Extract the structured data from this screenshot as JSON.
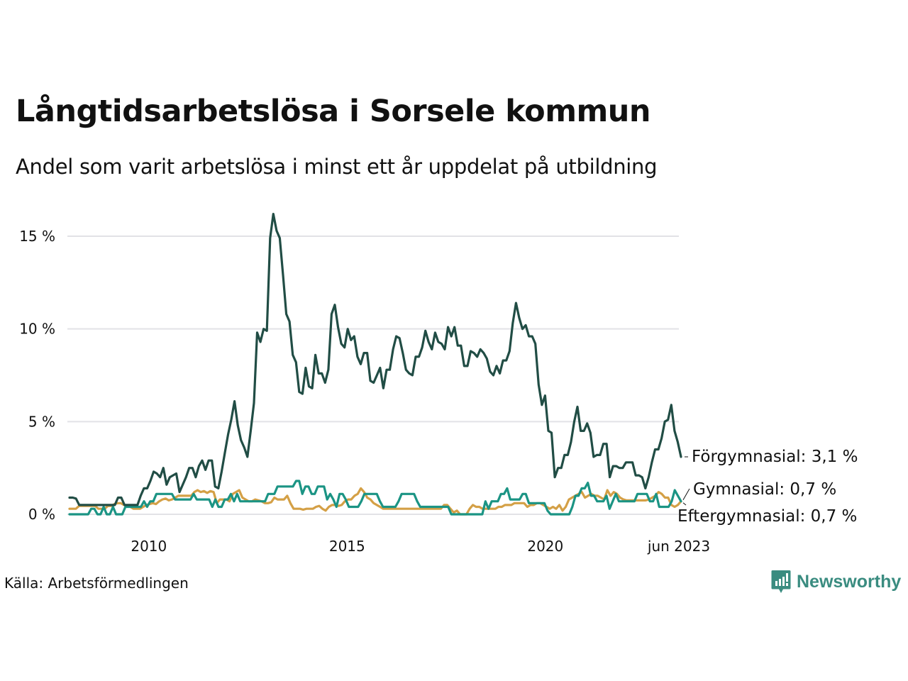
{
  "header": {
    "title": "Långtidsarbetslösa i Sorsele kommun",
    "subtitle": "Andel som varit arbetslösa i minst ett år uppdelat på utbildning"
  },
  "footer": {
    "source": "Källa: Arbetsförmedlingen",
    "logo_text": "Newsworthy",
    "logo_icon": "bar-chart-speech-bubble-icon",
    "logo_color": "#3a8c80"
  },
  "chart_data": {
    "type": "line",
    "title": "Långtidsarbetslösa i Sorsele kommun",
    "subtitle": "Andel som varit arbetslösa i minst ett år uppdelat på utbildning",
    "xlabel": "",
    "ylabel": "",
    "x_start": "2008-01",
    "x_end": "2023-06",
    "x_frequency": "monthly",
    "x_range": [
      2008.0,
      2023.42
    ],
    "x_ticks": [
      {
        "value": 2010.0,
        "label": "2010"
      },
      {
        "value": 2015.0,
        "label": "2015"
      },
      {
        "value": 2020.0,
        "label": "2020"
      },
      {
        "value": 2023.42,
        "label": "jun 2023"
      }
    ],
    "ylim": [
      0,
      16.5
    ],
    "y_ticks": [
      {
        "value": 0,
        "label": "0 %"
      },
      {
        "value": 5,
        "label": "5 %"
      },
      {
        "value": 10,
        "label": "10 %"
      },
      {
        "value": 15,
        "label": "15 %"
      }
    ],
    "grid": "horizontal",
    "legend": "direct-labels-right",
    "series": [
      {
        "name": "Förgymnasial",
        "color": "#214d45",
        "end_label": "Förgymnasial: 3,1 %",
        "values": [
          0.9,
          0.9,
          0.85,
          0.5,
          0.5,
          0.5,
          0.5,
          0.5,
          0.5,
          0.5,
          0.5,
          0.5,
          0.5,
          0.5,
          0.5,
          0.9,
          0.9,
          0.5,
          0.5,
          0.5,
          0.5,
          0.5,
          1.0,
          1.4,
          1.4,
          1.8,
          2.3,
          2.2,
          2.0,
          2.5,
          1.6,
          2.0,
          2.1,
          2.2,
          1.2,
          1.6,
          2.0,
          2.5,
          2.5,
          2.0,
          2.6,
          2.9,
          2.4,
          2.9,
          2.9,
          1.5,
          1.4,
          2.3,
          3.3,
          4.3,
          5.1,
          6.1,
          4.8,
          4.0,
          3.6,
          3.1,
          4.5,
          6.0,
          9.8,
          9.3,
          10.0,
          9.9,
          14.9,
          16.2,
          15.3,
          14.9,
          12.9,
          10.8,
          10.4,
          8.6,
          8.2,
          6.6,
          6.5,
          7.9,
          6.9,
          6.8,
          8.6,
          7.6,
          7.6,
          7.1,
          7.8,
          10.8,
          11.3,
          10.1,
          9.2,
          9.0,
          10.0,
          9.4,
          9.6,
          8.5,
          8.1,
          8.7,
          8.7,
          7.2,
          7.1,
          7.5,
          7.9,
          6.8,
          7.8,
          7.8,
          8.9,
          9.6,
          9.5,
          8.7,
          7.8,
          7.6,
          7.5,
          8.5,
          8.5,
          9.0,
          9.9,
          9.3,
          8.9,
          9.8,
          9.3,
          9.2,
          8.9,
          10.1,
          9.6,
          10.1,
          9.1,
          9.1,
          8.0,
          8.0,
          8.8,
          8.7,
          8.5,
          8.9,
          8.7,
          8.4,
          7.7,
          7.5,
          8.0,
          7.6,
          8.3,
          8.3,
          8.8,
          10.3,
          11.4,
          10.6,
          10.0,
          10.2,
          9.6,
          9.6,
          9.2,
          7.0,
          5.9,
          6.4,
          4.5,
          4.4,
          2.0,
          2.5,
          2.5,
          3.2,
          3.2,
          3.9,
          5.0,
          5.8,
          4.5,
          4.5,
          4.9,
          4.4,
          3.1,
          3.2,
          3.2,
          3.8,
          3.8,
          2.0,
          2.6,
          2.6,
          2.5,
          2.5,
          2.8,
          2.8,
          2.8,
          2.1,
          2.1,
          2.0,
          1.4,
          2.0,
          2.8,
          3.5,
          3.5,
          4.1,
          5.0,
          5.1,
          5.9,
          4.5,
          3.9,
          3.1
        ],
        "end_value": 3.1
      },
      {
        "name": "Gymnasial",
        "color": "#1b9484",
        "end_label": "Gymnasial: 0,7 %",
        "values": [
          0.0,
          0.0,
          0.0,
          0.0,
          0.0,
          0.0,
          0.0,
          0.3,
          0.3,
          0.0,
          0.0,
          0.4,
          0.0,
          0.0,
          0.4,
          0.0,
          0.0,
          0.0,
          0.4,
          0.4,
          0.4,
          0.4,
          0.4,
          0.4,
          0.7,
          0.4,
          0.7,
          0.7,
          1.1,
          1.1,
          1.1,
          1.1,
          1.1,
          1.1,
          0.8,
          0.8,
          0.8,
          0.8,
          0.8,
          0.8,
          1.1,
          0.8,
          0.8,
          0.8,
          0.8,
          0.8,
          0.4,
          0.8,
          0.4,
          0.4,
          0.8,
          0.8,
          1.1,
          0.7,
          1.1,
          0.7,
          0.7,
          0.7,
          0.7,
          0.7,
          0.7,
          0.7,
          0.7,
          0.7,
          1.1,
          1.1,
          1.1,
          1.5,
          1.5,
          1.5,
          1.5,
          1.5,
          1.5,
          1.8,
          1.8,
          1.1,
          1.5,
          1.5,
          1.1,
          1.1,
          1.5,
          1.5,
          1.5,
          0.8,
          1.1,
          0.8,
          0.4,
          1.1,
          1.1,
          0.8,
          0.4,
          0.4,
          0.4,
          0.4,
          0.7,
          1.1,
          1.1,
          1.1,
          1.1,
          1.1,
          0.7,
          0.4,
          0.4,
          0.4,
          0.4,
          0.4,
          0.7,
          1.1,
          1.1,
          1.1,
          1.1,
          1.1,
          0.7,
          0.4,
          0.4,
          0.4,
          0.4,
          0.4,
          0.4,
          0.4,
          0.4,
          0.4,
          0.4,
          0.0,
          0.0,
          0.0,
          0.0,
          0.0,
          0.0,
          0.0,
          0.0,
          0.0,
          0.0,
          0.0,
          0.7,
          0.3,
          0.7,
          0.7,
          0.7,
          1.1,
          1.1,
          1.4,
          0.8,
          0.8,
          0.8,
          0.8,
          1.1,
          1.1,
          0.6,
          0.6,
          0.6,
          0.6,
          0.6,
          0.6,
          0.2,
          0.0,
          0.0,
          0.0,
          0.0,
          0.0,
          0.0,
          0.0,
          0.4,
          1.0,
          1.0,
          1.4,
          1.4,
          1.7,
          1.0,
          1.0,
          0.7,
          0.7,
          0.7,
          1.0,
          0.3,
          0.7,
          1.1,
          0.7,
          0.7,
          0.7,
          0.7,
          0.7,
          0.7,
          1.1,
          1.1,
          1.1,
          1.1,
          0.7,
          0.7,
          1.1,
          0.4,
          0.4,
          0.4,
          0.4,
          0.7,
          1.3,
          1.0,
          0.7
        ],
        "end_value": 0.7
      },
      {
        "name": "Eftergymnasial",
        "color": "#d4a046",
        "end_label": "Eftergymnasial: 0,7 %",
        "values": [
          0.3,
          0.3,
          0.3,
          0.45,
          0.45,
          0.45,
          0.45,
          0.45,
          0.45,
          0.3,
          0.3,
          0.3,
          0.45,
          0.45,
          0.55,
          0.6,
          0.6,
          0.5,
          0.45,
          0.4,
          0.3,
          0.3,
          0.3,
          0.4,
          0.5,
          0.55,
          0.6,
          0.55,
          0.7,
          0.8,
          0.85,
          0.75,
          0.8,
          0.9,
          1.0,
          1.0,
          1.0,
          1.0,
          1.0,
          1.2,
          1.3,
          1.2,
          1.25,
          1.15,
          1.25,
          1.2,
          0.6,
          0.8,
          0.8,
          0.8,
          0.7,
          1.1,
          1.2,
          1.3,
          0.9,
          0.8,
          0.7,
          0.7,
          0.8,
          0.75,
          0.7,
          0.6,
          0.6,
          0.65,
          0.9,
          0.8,
          0.8,
          0.8,
          1.0,
          0.6,
          0.3,
          0.3,
          0.3,
          0.25,
          0.3,
          0.3,
          0.3,
          0.4,
          0.45,
          0.3,
          0.2,
          0.4,
          0.5,
          0.5,
          0.45,
          0.5,
          0.7,
          0.8,
          0.8,
          1.0,
          1.1,
          1.4,
          1.2,
          0.9,
          0.8,
          0.6,
          0.5,
          0.4,
          0.3,
          0.3,
          0.3,
          0.3,
          0.3,
          0.3,
          0.3,
          0.3,
          0.3,
          0.3,
          0.3,
          0.3,
          0.3,
          0.3,
          0.3,
          0.3,
          0.3,
          0.3,
          0.3,
          0.5,
          0.5,
          0.3,
          0.1,
          0.2,
          0.0,
          0.0,
          0.0,
          0.3,
          0.5,
          0.4,
          0.4,
          0.3,
          0.3,
          0.3,
          0.3,
          0.3,
          0.4,
          0.4,
          0.5,
          0.5,
          0.5,
          0.6,
          0.6,
          0.6,
          0.6,
          0.4,
          0.5,
          0.5,
          0.6,
          0.6,
          0.5,
          0.4,
          0.3,
          0.4,
          0.3,
          0.5,
          0.2,
          0.4,
          0.8,
          0.9,
          1.0,
          1.1,
          1.2,
          0.9,
          1.0,
          1.1,
          1.0,
          1.0,
          0.9,
          0.8,
          1.3,
          1.0,
          1.2,
          1.1,
          0.9,
          0.8,
          0.75,
          0.75,
          0.75,
          0.75,
          0.75,
          0.75,
          0.75,
          0.8,
          0.9,
          1.0,
          1.2,
          1.1,
          0.9,
          0.9,
          0.5,
          0.4,
          0.5,
          0.7
        ],
        "end_value": 0.7
      }
    ]
  }
}
